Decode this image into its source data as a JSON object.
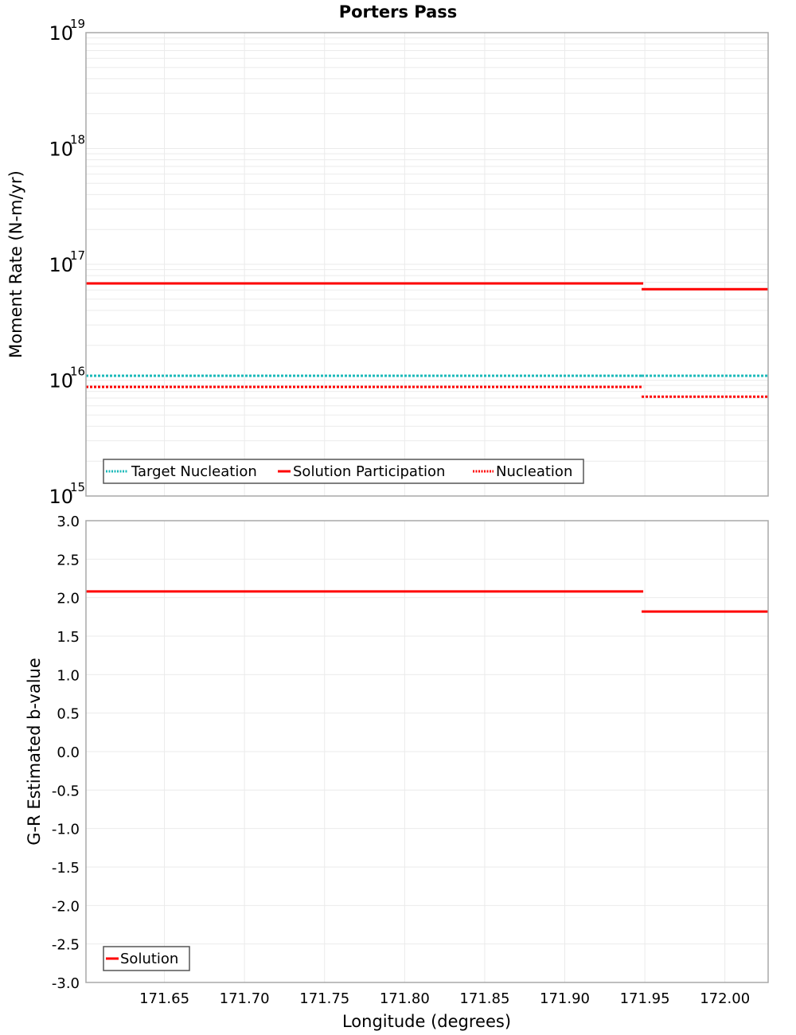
{
  "title": "Porters Pass",
  "colors": {
    "solution_red": "#ff0000",
    "target_cyan": "#1ab9b9",
    "grid": "#ebebeb",
    "frame": "#a8a8a8",
    "legend_border": "#555555"
  },
  "chart_data": [
    {
      "type": "line",
      "title": "Porters Pass",
      "xlabel": "Longitude (degrees)",
      "ylabel": "Moment Rate (N-m/yr)",
      "yscale": "log",
      "xlim": [
        171.601,
        172.027
      ],
      "ylim": [
        1000000000000000.0,
        1e+19
      ],
      "y_ticks": [
        {
          "base": "10",
          "exp": "15",
          "value": 1000000000000000.0
        },
        {
          "base": "10",
          "exp": "16",
          "value": 1e+16
        },
        {
          "base": "10",
          "exp": "17",
          "value": 1e+17
        },
        {
          "base": "10",
          "exp": "18",
          "value": 1e+18
        },
        {
          "base": "10",
          "exp": "19",
          "value": 1e+19
        }
      ],
      "grid": true,
      "legend_position": "lower-left",
      "series": [
        {
          "name": "Target Nucleation",
          "style": "dotted",
          "color": "#1ab9b9",
          "segments": [
            {
              "x": [
                171.601,
                171.948
              ],
              "y": 1.09e+16
            },
            {
              "x": [
                171.948,
                172.027
              ],
              "y": 1.09e+16
            }
          ]
        },
        {
          "name": "Solution Participation",
          "style": "solid",
          "color": "#ff0000",
          "segments": [
            {
              "x": [
                171.601,
                171.949
              ],
              "y": 6.84e+16
            },
            {
              "x": [
                171.948,
                172.027
              ],
              "y": 6.1e+16
            }
          ]
        },
        {
          "name": "Nucleation",
          "style": "dotted",
          "color": "#ff0000",
          "segments": [
            {
              "x": [
                171.601,
                171.949
              ],
              "y": 8750000000000000.0
            },
            {
              "x": [
                171.948,
                172.027
              ],
              "y": 7200000000000000.0
            }
          ]
        }
      ]
    },
    {
      "type": "line",
      "xlabel": "Longitude (degrees)",
      "ylabel": "G-R Estimated b-value",
      "xlim": [
        171.601,
        172.027
      ],
      "ylim": [
        -3.0,
        3.0
      ],
      "x_ticks": [
        "171.65",
        "171.70",
        "171.75",
        "171.80",
        "171.85",
        "171.90",
        "171.95",
        "172.00"
      ],
      "x_tick_values": [
        171.65,
        171.7,
        171.75,
        171.8,
        171.85,
        171.9,
        171.95,
        172.0
      ],
      "y_ticks": [
        "3.0",
        "2.5",
        "2.0",
        "1.5",
        "1.0",
        "0.5",
        "0.0",
        "-0.5",
        "-1.0",
        "-1.5",
        "-2.0",
        "-2.5",
        "-3.0"
      ],
      "y_tick_values": [
        3.0,
        2.5,
        2.0,
        1.5,
        1.0,
        0.5,
        0.0,
        -0.5,
        -1.0,
        -1.5,
        -2.0,
        -2.5,
        -3.0
      ],
      "grid": true,
      "legend_position": "lower-left",
      "series": [
        {
          "name": "Solution",
          "style": "solid",
          "color": "#ff0000",
          "segments": [
            {
              "x": [
                171.601,
                171.686
              ],
              "y": 2.08
            },
            {
              "x": [
                171.686,
                171.772
              ],
              "y": 2.08
            },
            {
              "x": [
                171.772,
                171.859
              ],
              "y": 2.08
            },
            {
              "x": [
                171.859,
                171.949
              ],
              "y": 2.08
            },
            {
              "x": [
                171.948,
                172.027
              ],
              "y": 1.82
            }
          ]
        }
      ]
    }
  ]
}
